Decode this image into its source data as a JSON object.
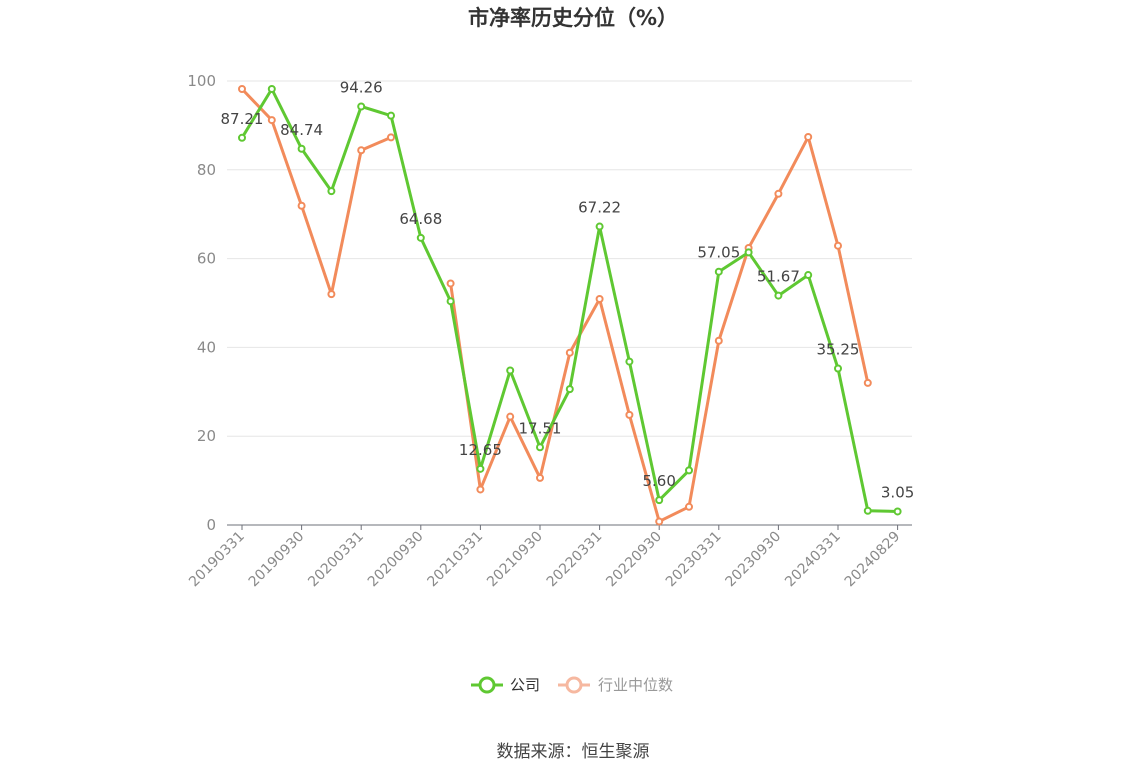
{
  "chart_data": {
    "type": "line",
    "title": "市净率历史分位（%）",
    "ylim": [
      0,
      100
    ],
    "yticks": [
      0,
      20,
      40,
      60,
      80,
      100
    ],
    "x_tick_labels": [
      "20190331",
      "20190930",
      "20200331",
      "20200930",
      "20210331",
      "20210930",
      "20220331",
      "20220930",
      "20230331",
      "20230930",
      "20240331",
      "20240829"
    ],
    "x": [
      "20190331",
      "20190630",
      "20190930",
      "20191231",
      "20200331",
      "20200630",
      "20200930",
      "20201231",
      "20210331",
      "20210630",
      "20210930",
      "20211231",
      "20220331",
      "20220630",
      "20220930",
      "20221231",
      "20230331",
      "20230630",
      "20230930",
      "20231231",
      "20240331",
      "20240630",
      "20240829"
    ],
    "series": [
      {
        "name": "公司",
        "color": "#5fc832",
        "values": [
          87.21,
          98.2,
          84.74,
          75.2,
          94.26,
          92.2,
          64.68,
          50.4,
          12.65,
          34.8,
          17.51,
          30.6,
          67.22,
          36.8,
          5.6,
          12.3,
          57.05,
          61.4,
          51.67,
          56.3,
          35.25,
          3.2,
          3.05
        ],
        "labels": {
          "0": "87.21",
          "2": "84.74",
          "4": "94.26",
          "6": "64.68",
          "8": "12.65",
          "10": "17.51",
          "12": "67.22",
          "14": "5.60",
          "16": "57.05",
          "18": "51.67",
          "20": "35.25",
          "22": "3.05"
        }
      },
      {
        "name": "行业中位数",
        "color": "#f28b5b",
        "values": [
          98.2,
          91.2,
          71.9,
          52.0,
          84.4,
          87.3,
          null,
          54.4,
          8.0,
          24.4,
          10.6,
          38.8,
          50.9,
          24.8,
          0.8,
          4.1,
          41.5,
          62.4,
          74.6,
          87.4,
          62.9,
          32.0,
          null
        ]
      }
    ],
    "legend": {
      "position": "bottom-center",
      "items": [
        "公司",
        "行业中位数"
      ]
    },
    "grid": true
  },
  "source": "数据来源：恒生聚源"
}
